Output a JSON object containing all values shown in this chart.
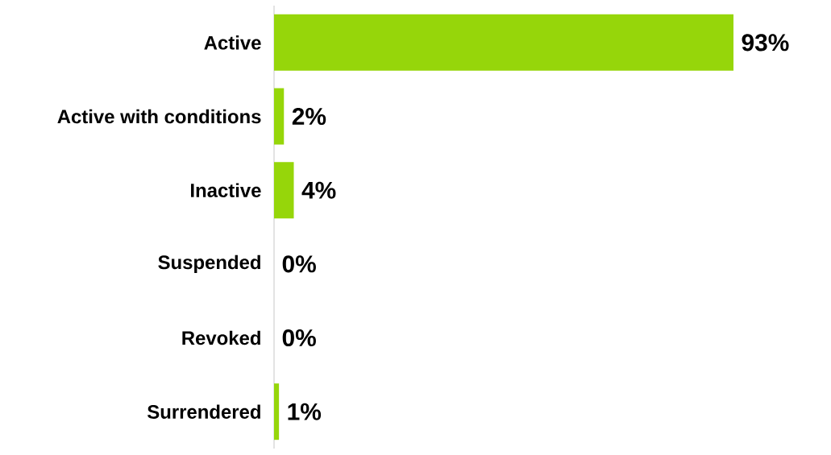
{
  "chart_data": {
    "type": "bar",
    "orientation": "horizontal",
    "categories": [
      "Active",
      "Active with conditions",
      "Inactive",
      "Suspended",
      "Revoked",
      "Surrendered"
    ],
    "values": [
      93,
      2,
      4,
      0,
      0,
      1
    ],
    "value_labels": [
      "93%",
      "2%",
      "4%",
      "0%",
      "0%",
      "1%"
    ],
    "color": "#96d60a"
  }
}
